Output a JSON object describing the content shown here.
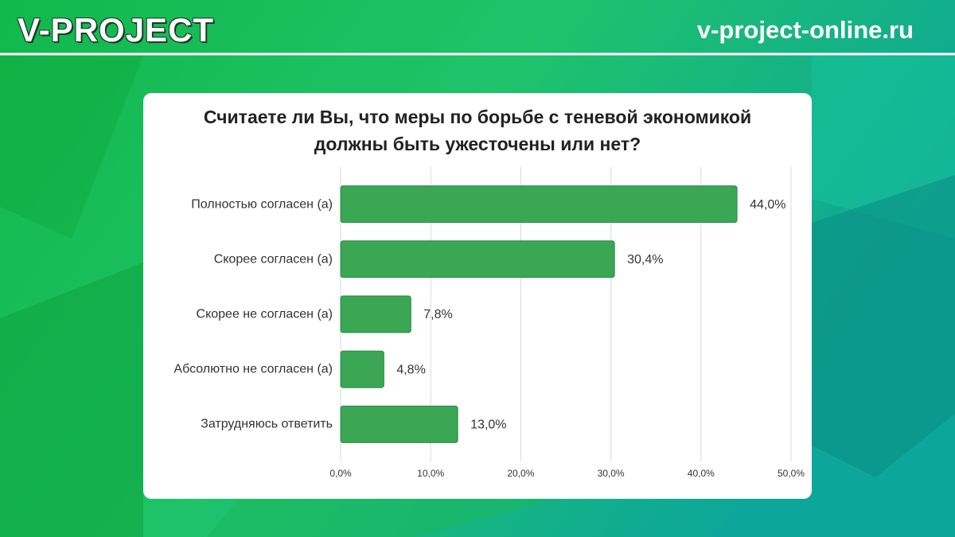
{
  "header": {
    "logo": "V-PROJECT",
    "site": "v-project-online.ru"
  },
  "chart_data": {
    "type": "hbar",
    "title": "Считаете ли Вы, что меры по борьбе с теневой экономикой должны быть ужесточены или нет?",
    "categories": [
      "Полностью согласен (а)",
      "Скорее согласен (а)",
      "Скорее не согласен (а)",
      "Абсолютно не согласен (а)",
      "Затрудняюсь ответить"
    ],
    "values": [
      44.0,
      30.4,
      7.8,
      4.8,
      13.0
    ],
    "value_labels": [
      "44,0%",
      "30,4%",
      "7,8%",
      "4,8%",
      "13,0%"
    ],
    "color": "#3ba654",
    "xlim": [
      0,
      50
    ],
    "xticks": [
      {
        "value": 0,
        "label": "0,0%"
      },
      {
        "value": 10,
        "label": "10,0%"
      },
      {
        "value": 20,
        "label": "20,0%"
      },
      {
        "value": 30,
        "label": "30,0%"
      },
      {
        "value": 40,
        "label": "40,0%"
      },
      {
        "value": 50,
        "label": "50,0%"
      }
    ],
    "grid": true
  }
}
